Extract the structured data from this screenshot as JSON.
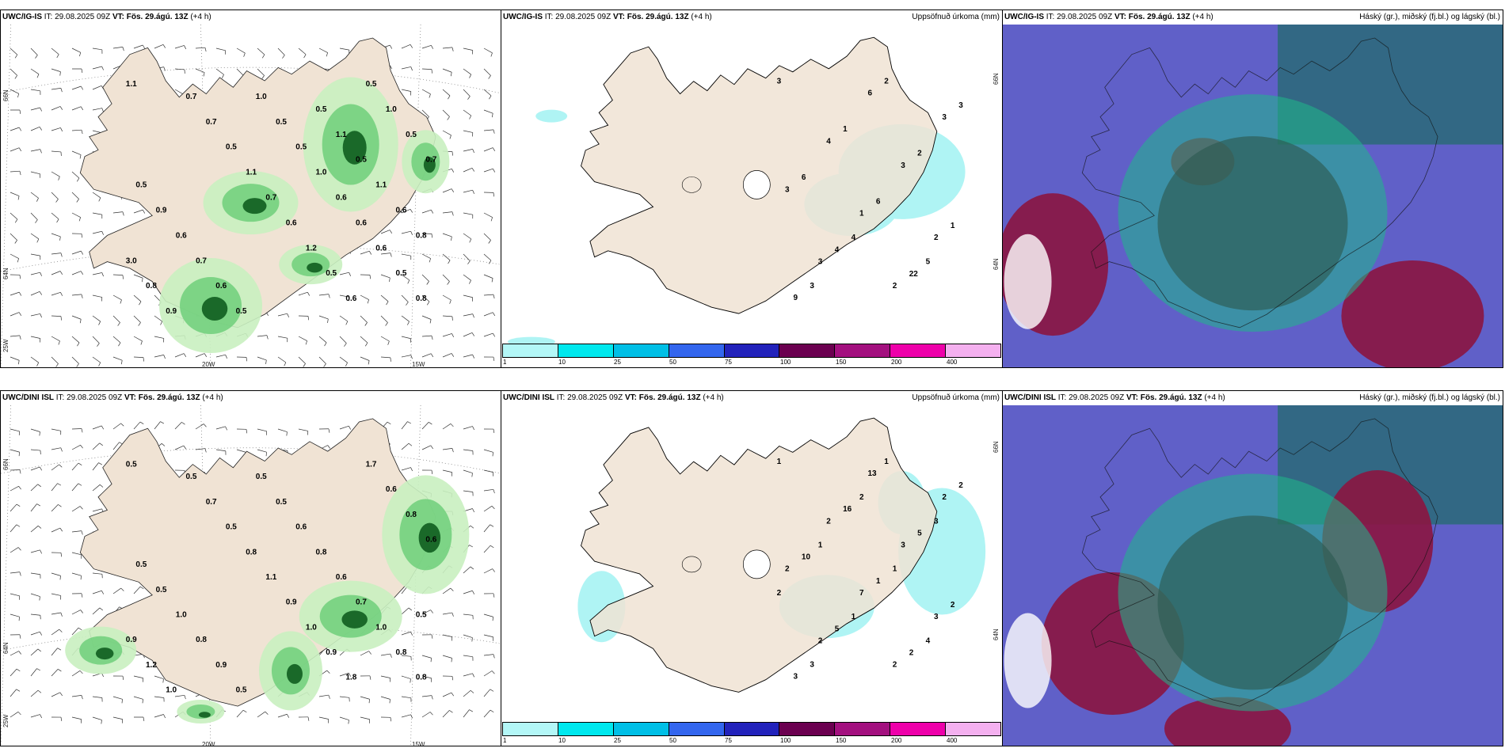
{
  "panels": {
    "top_left": {
      "model": "UWC/IG-IS",
      "it_label": "IT:",
      "it": "29.08.2025 09Z",
      "vt_label": "VT:",
      "vt": "Fös. 29.ágú. 13Z",
      "lead": "(+4 h)",
      "right": ""
    },
    "top_mid": {
      "model": "UWC/IG-IS",
      "it_label": "IT:",
      "it": "29.08.2025 09Z",
      "vt_label": "VT:",
      "vt": "Fös. 29.ágú. 13Z",
      "lead": "(+4 h)",
      "right": "Uppsöfnuð úrkoma (mm)"
    },
    "top_right": {
      "model": "UWC/IG-IS",
      "it_label": "IT:",
      "it": "29.08.2025 09Z",
      "vt_label": "VT:",
      "vt": "Fös. 29.ágú. 13Z",
      "lead": "(+4 h)",
      "right": "Háský (gr.), miðský (fj.bl.) og lágský (bl.)"
    },
    "bot_left": {
      "model": "UWC/DINI ISL",
      "it_label": "IT:",
      "it": "29.08.2025 09Z",
      "vt_label": "VT:",
      "vt": "Fös. 29.ágú. 13Z",
      "lead": "(+4 h)",
      "right": ""
    },
    "bot_mid": {
      "model": "UWC/DINI ISL",
      "it_label": "IT:",
      "it": "29.08.2025 09Z",
      "vt_label": "VT:",
      "vt": "Fös. 29.ágú. 13Z",
      "lead": "(+4 h)",
      "right": "Uppsöfnuð úrkoma (mm)"
    },
    "bot_right": {
      "model": "UWC/DINI ISL",
      "it_label": "IT:",
      "it": "29.08.2025 09Z",
      "vt_label": "VT:",
      "vt": "Fös. 29.ágú. 13Z",
      "lead": "(+4 h)",
      "right": "Háský (gr.), miðský (fj.bl.) og lágský (bl.)"
    }
  },
  "axes": {
    "lat_66": "66N",
    "lat_64": "64N",
    "lon_20": "20W",
    "lon_15": "15W",
    "lon_25": "25W"
  },
  "colorbar": {
    "labels": [
      "1",
      "10",
      "25",
      "50",
      "75",
      "100",
      "150",
      "200",
      "400"
    ],
    "colors": [
      "#b3f7f7",
      "#00e8ee",
      "#00bfe6",
      "#3366ee",
      "#2222bb",
      "#6b0050",
      "#a3107f",
      "#ee00aa",
      "#f4b0ef"
    ]
  },
  "colors": {
    "land": "#f0e3d4",
    "green_light": "#c9f0c0",
    "green_mid": "#6fcf7a",
    "green_dark": "#0f5d1f",
    "precip": "#aff4f4",
    "cloud_high": "#6060c8",
    "cloud_mid": "#8b1540",
    "cloud_low": "#1fb88a",
    "sea_dark": "#2a6a78"
  },
  "labels": {
    "top_left": [
      {
        "t": "1.1"
      },
      {
        "t": "0.8"
      },
      {
        "t": "0.5"
      },
      {
        "t": "0.6"
      },
      {
        "t": "0.6"
      },
      {
        "t": "0.6"
      },
      {
        "t": "1.0"
      },
      {
        "t": "0.5"
      },
      {
        "t": "0.5"
      },
      {
        "t": "1.0"
      },
      {
        "t": "0.5"
      },
      {
        "t": "0.6"
      },
      {
        "t": "0.7"
      },
      {
        "t": "0.6"
      },
      {
        "t": "0.9"
      },
      {
        "t": "0.5"
      },
      {
        "t": "0.7"
      },
      {
        "t": "0.5"
      },
      {
        "t": "1.0"
      },
      {
        "t": "0.5"
      },
      {
        "t": "0.6"
      },
      {
        "t": "0.5"
      },
      {
        "t": "1.2"
      },
      {
        "t": "0.6"
      },
      {
        "t": "0.7"
      },
      {
        "t": "1.1"
      },
      {
        "t": "0.5"
      },
      {
        "t": "0.7"
      },
      {
        "t": "0.7"
      },
      {
        "t": "0.9"
      },
      {
        "t": "0.8"
      },
      {
        "t": "3.0"
      },
      {
        "t": "0.8"
      },
      {
        "t": "0.6"
      },
      {
        "t": "1.1"
      },
      {
        "t": "0.5"
      },
      {
        "t": "1.1"
      },
      {
        "t": "0.5"
      }
    ],
    "top_mid": [
      {
        "t": "3"
      },
      {
        "t": "2"
      },
      {
        "t": "3"
      },
      {
        "t": "2"
      },
      {
        "t": "1"
      },
      {
        "t": "3"
      },
      {
        "t": "3"
      },
      {
        "t": "4"
      },
      {
        "t": "3"
      },
      {
        "t": "6"
      },
      {
        "t": "9"
      },
      {
        "t": "22"
      },
      {
        "t": "4"
      },
      {
        "t": "1"
      },
      {
        "t": "6"
      },
      {
        "t": "6"
      },
      {
        "t": "2"
      },
      {
        "t": "1"
      },
      {
        "t": "3"
      },
      {
        "t": "2"
      },
      {
        "t": "3"
      },
      {
        "t": "5"
      },
      {
        "t": "4"
      }
    ],
    "bot_left": [
      {
        "t": "0.5"
      },
      {
        "t": "0.8"
      },
      {
        "t": "0.8"
      },
      {
        "t": "1.0"
      },
      {
        "t": "0.7"
      },
      {
        "t": "0.6"
      },
      {
        "t": "0.8"
      },
      {
        "t": "0.6"
      },
      {
        "t": "0.5"
      },
      {
        "t": "0.5"
      },
      {
        "t": "0.5"
      },
      {
        "t": "0.9"
      },
      {
        "t": "0.8"
      },
      {
        "t": "1.0"
      },
      {
        "t": "0.5"
      },
      {
        "t": "0.5"
      },
      {
        "t": "0.6"
      },
      {
        "t": "0.8"
      },
      {
        "t": "0.6"
      },
      {
        "t": "1.7"
      },
      {
        "t": "1.8"
      },
      {
        "t": "0.9"
      },
      {
        "t": "1.0"
      },
      {
        "t": "0.9"
      },
      {
        "t": "1.1"
      },
      {
        "t": "0.8"
      },
      {
        "t": "0.5"
      },
      {
        "t": "0.7"
      },
      {
        "t": "0.5"
      },
      {
        "t": "1.0"
      },
      {
        "t": "1.2"
      },
      {
        "t": "0.9"
      },
      {
        "t": "0.5"
      }
    ],
    "bot_mid": [
      {
        "t": "1"
      },
      {
        "t": "2"
      },
      {
        "t": "2"
      },
      {
        "t": "3"
      },
      {
        "t": "7"
      },
      {
        "t": "2"
      },
      {
        "t": "3"
      },
      {
        "t": "2"
      },
      {
        "t": "2"
      },
      {
        "t": "13"
      },
      {
        "t": "3"
      },
      {
        "t": "2"
      },
      {
        "t": "5"
      },
      {
        "t": "2"
      },
      {
        "t": "1"
      },
      {
        "t": "10"
      },
      {
        "t": "5"
      },
      {
        "t": "16"
      },
      {
        "t": "2"
      },
      {
        "t": "1"
      },
      {
        "t": "3"
      },
      {
        "t": "4"
      },
      {
        "t": "1"
      },
      {
        "t": "2"
      },
      {
        "t": "1"
      },
      {
        "t": "1"
      },
      {
        "t": "3"
      },
      {
        "t": "2"
      }
    ]
  }
}
